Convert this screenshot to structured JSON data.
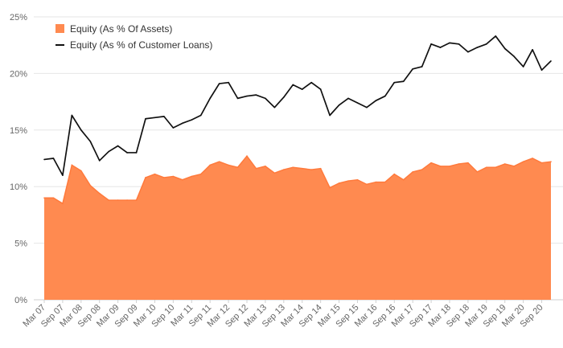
{
  "chart_data": {
    "type": "area",
    "title": "",
    "xlabel": "",
    "ylabel": "",
    "ylim": [
      0,
      25
    ],
    "y_ticks": [
      0,
      5,
      10,
      15,
      20,
      25
    ],
    "y_tick_labels": [
      "0%",
      "5%",
      "10%",
      "15%",
      "20%",
      "25%"
    ],
    "x_tick_labels": [
      "Mar 07",
      "Sep 07",
      "Mar 08",
      "Sep 08",
      "Mar 09",
      "Sep 09",
      "Mar 10",
      "Sep 10",
      "Mar 11",
      "Sep 11",
      "Mar 12",
      "Sep 12",
      "Mar 13",
      "Sep 13",
      "Mar 14",
      "Sep 14",
      "Mar 15",
      "Sep 15",
      "Mar 16",
      "Sep 16",
      "Mar 17",
      "Sep 17",
      "Mar 18",
      "Sep 18",
      "Mar 19",
      "Sep 19",
      "Mar 20",
      "Sep 20"
    ],
    "x": [
      "Mar 07",
      "Jun 07",
      "Sep 07",
      "Dec 07",
      "Mar 08",
      "Jun 08",
      "Sep 08",
      "Dec 08",
      "Mar 09",
      "Jun 09",
      "Sep 09",
      "Dec 09",
      "Mar 10",
      "Jun 10",
      "Sep 10",
      "Dec 10",
      "Mar 11",
      "Jun 11",
      "Sep 11",
      "Dec 11",
      "Mar 12",
      "Jun 12",
      "Sep 12",
      "Dec 12",
      "Mar 13",
      "Jun 13",
      "Sep 13",
      "Dec 13",
      "Mar 14",
      "Jun 14",
      "Sep 14",
      "Dec 14",
      "Mar 15",
      "Jun 15",
      "Sep 15",
      "Dec 15",
      "Mar 16",
      "Jun 16",
      "Sep 16",
      "Dec 16",
      "Mar 17",
      "Jun 17",
      "Sep 17",
      "Dec 17",
      "Mar 18",
      "Jun 18",
      "Sep 18",
      "Dec 18",
      "Mar 19",
      "Jun 19",
      "Sep 19",
      "Dec 19",
      "Mar 20",
      "Jun 20",
      "Sep 20",
      "Dec 20"
    ],
    "grid": true,
    "legend_position": "top-left",
    "series": [
      {
        "name": "Equity (As % Of Assets)",
        "type": "area",
        "color": "#ff8a50",
        "stroke": "#ff7a3c",
        "values": [
          9.0,
          9.0,
          8.5,
          11.9,
          11.4,
          10.1,
          9.4,
          8.8,
          8.8,
          8.8,
          8.8,
          10.8,
          11.1,
          10.8,
          10.9,
          10.6,
          10.9,
          11.1,
          11.9,
          12.2,
          11.9,
          11.7,
          12.7,
          11.6,
          11.8,
          11.2,
          11.5,
          11.7,
          11.6,
          11.5,
          11.6,
          9.9,
          10.3,
          10.5,
          10.6,
          10.2,
          10.4,
          10.4,
          11.1,
          10.6,
          11.3,
          11.5,
          12.1,
          11.8,
          11.8,
          12.0,
          12.1,
          11.3,
          11.7,
          11.7,
          12.0,
          11.8,
          12.2,
          12.5,
          12.1,
          12.2
        ]
      },
      {
        "name": "Equity (As % of Customer Loans)",
        "type": "line",
        "color": "#111111",
        "values": [
          12.4,
          12.5,
          11.0,
          16.3,
          15.0,
          14.0,
          12.3,
          13.1,
          13.6,
          13.0,
          13.0,
          16.0,
          16.1,
          16.2,
          15.2,
          15.6,
          15.9,
          16.3,
          17.8,
          19.1,
          19.2,
          17.8,
          18.0,
          18.1,
          17.8,
          17.0,
          17.9,
          19.0,
          18.6,
          19.2,
          18.6,
          16.3,
          17.2,
          17.8,
          17.4,
          17.0,
          17.6,
          18.0,
          19.2,
          19.3,
          20.4,
          20.6,
          22.6,
          22.3,
          22.7,
          22.6,
          21.9,
          22.3,
          22.6,
          23.3,
          22.2,
          21.5,
          20.6,
          22.1,
          20.3,
          21.1
        ]
      }
    ]
  }
}
